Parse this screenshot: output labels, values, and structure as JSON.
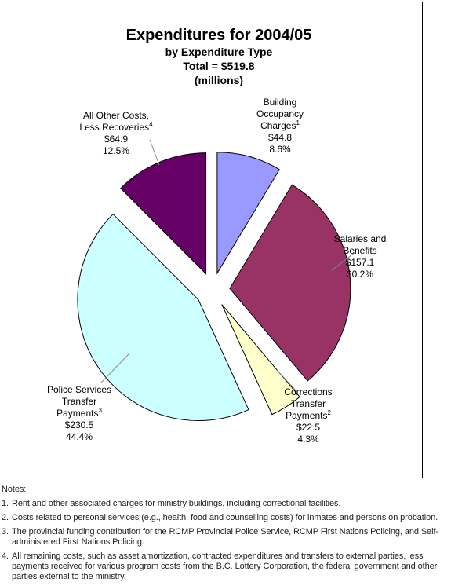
{
  "chart_data": {
    "type": "pie",
    "title": "Expenditures for 2004/05",
    "subtitle_lines": [
      "by Expenditure Type",
      "Total = $519.8",
      "(millions)"
    ],
    "total": 519.8,
    "slices": [
      {
        "label_lines": [
          "Building",
          "Occupancy",
          "Charges"
        ],
        "sup": "1",
        "value": 44.8,
        "value_label": "$44.8",
        "percent": 8.6,
        "percent_label": "8.6%",
        "color": "#9999FF"
      },
      {
        "label_lines": [
          "Salaries and",
          "Benefits"
        ],
        "sup": "",
        "value": 157.1,
        "value_label": "$157.1",
        "percent": 30.2,
        "percent_label": "30.2%",
        "color": "#993366"
      },
      {
        "label_lines": [
          "Corrections",
          "Transfer",
          "Payments"
        ],
        "sup": "2",
        "value": 22.5,
        "value_label": "$22.5",
        "percent": 4.3,
        "percent_label": "4.3%",
        "color": "#FFFFCC"
      },
      {
        "label_lines": [
          "Police Services",
          "Transfer",
          "Payments"
        ],
        "sup": "3",
        "value": 230.5,
        "value_label": "$230.5",
        "percent": 44.4,
        "percent_label": "44.4%",
        "color": "#CCFFFF"
      },
      {
        "label_lines": [
          "All Other Costs,",
          "Less Recoveries"
        ],
        "sup": "4",
        "value": 64.9,
        "value_label": "$64.9",
        "percent": 12.5,
        "percent_label": "12.5%",
        "color": "#660066"
      }
    ]
  },
  "notes": {
    "heading": "Notes:",
    "items": [
      {
        "num": "1.",
        "text": "Rent and other associated charges for ministry buildings, including correctional facilities."
      },
      {
        "num": "2.",
        "text": "Costs related to personal services (e.g., health, food and counselling costs) for inmates and persons on probation."
      },
      {
        "num": "3.",
        "text": "The provincial funding contribution for the RCMP Provincial Police Service, RCMP First Nations Policing, and Self-administered First Nations Policing."
      },
      {
        "num": "4.",
        "text": "All remaining costs, such as asset amortization, contracted expenditures and transfers to external parties, less payments received for various program costs from the B.C. Lottery Corporation, the federal government and other parties external to the ministry."
      }
    ]
  }
}
